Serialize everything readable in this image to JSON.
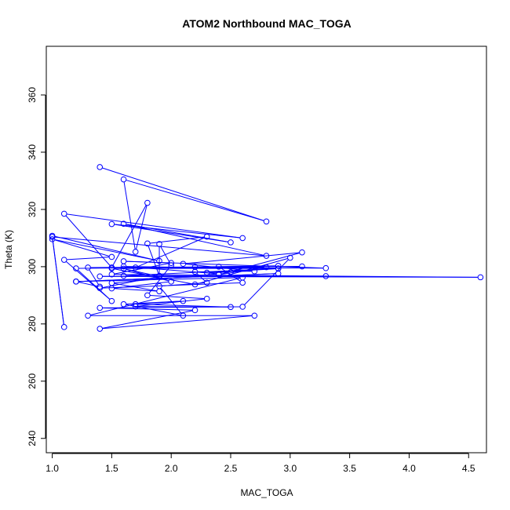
{
  "chart_data": {
    "type": "line",
    "title": "ATOM2 Northbound MAC_TOGA",
    "xlabel": "MAC_TOGA",
    "ylabel": "Theta (K)",
    "xlim": [
      0.95,
      4.65
    ],
    "ylim": [
      235,
      377
    ],
    "xticks": [
      1.0,
      1.5,
      2.0,
      2.5,
      3.0,
      3.5,
      4.0,
      4.5
    ],
    "xtick_labels": [
      "1.0",
      "1.5",
      "2.0",
      "2.5",
      "3.0",
      "3.5",
      "4.0",
      "4.5"
    ],
    "yticks": [
      240,
      260,
      280,
      300,
      320,
      340,
      360
    ],
    "ytick_labels": [
      "240",
      "260",
      "280",
      "300",
      "320",
      "340",
      "360"
    ],
    "grid": false,
    "series": [
      {
        "color": "#0000ff",
        "marker": "open-circle",
        "points": [
          [
            1.4,
            334.8
          ],
          [
            2.8,
            315.8
          ],
          [
            1.6,
            330.5
          ],
          [
            1.7,
            305.2
          ],
          [
            1.8,
            322.3
          ],
          [
            1.5,
            299.7
          ],
          [
            1.1,
            318.5
          ],
          [
            2.6,
            310.0
          ],
          [
            1.5,
            314.9
          ],
          [
            2.5,
            308.5
          ],
          [
            1.6,
            315.0
          ],
          [
            2.8,
            303.8
          ],
          [
            1.0,
            310.4
          ],
          [
            1.1,
            278.9
          ],
          [
            1.0,
            310.8
          ],
          [
            1.9,
            302.0
          ],
          [
            1.0,
            309.6
          ],
          [
            1.5,
            303.4
          ],
          [
            1.1,
            302.4
          ],
          [
            1.5,
            288.0
          ],
          [
            1.2,
            299.4
          ],
          [
            3.1,
            300.1
          ],
          [
            1.3,
            299.7
          ],
          [
            1.4,
            293.0
          ],
          [
            1.2,
            294.8
          ],
          [
            2.9,
            297.6
          ],
          [
            1.2,
            294.8
          ],
          [
            2.6,
            296.2
          ],
          [
            1.3,
            282.9
          ],
          [
            2.7,
            282.9
          ],
          [
            1.4,
            278.3
          ],
          [
            2.2,
            284.8
          ],
          [
            1.4,
            285.6
          ],
          [
            2.6,
            286.0
          ],
          [
            3.0,
            303.1
          ],
          [
            2.2,
            293.8
          ],
          [
            1.5,
            299.4
          ],
          [
            2.9,
            299.4
          ],
          [
            1.6,
            296.8
          ],
          [
            3.3,
            296.7
          ],
          [
            1.4,
            296.6
          ],
          [
            4.6,
            296.3
          ],
          [
            1.5,
            297.3
          ],
          [
            2.0,
            301.3
          ],
          [
            1.6,
            301.9
          ],
          [
            3.3,
            299.5
          ],
          [
            1.7,
            299.7
          ],
          [
            2.3,
            310.5
          ],
          [
            1.8,
            308.1
          ],
          [
            1.9,
            296.8
          ],
          [
            1.9,
            307.9
          ],
          [
            2.0,
            300.5
          ],
          [
            1.8,
            290.0
          ],
          [
            2.3,
            288.8
          ],
          [
            1.7,
            286.1
          ],
          [
            2.5,
            285.9
          ],
          [
            1.7,
            286.9
          ],
          [
            2.1,
            288.0
          ],
          [
            1.6,
            286.9
          ],
          [
            2.1,
            282.9
          ],
          [
            1.9,
            293.2
          ],
          [
            2.3,
            294.4
          ],
          [
            2.2,
            298.2
          ],
          [
            2.7,
            298.4
          ],
          [
            2.1,
            301.0
          ],
          [
            3.1,
            305.0
          ],
          [
            2.4,
            297.2
          ],
          [
            2.8,
            299.8
          ],
          [
            2.2,
            299.9
          ],
          [
            2.9,
            300.3
          ],
          [
            2.4,
            300.0
          ],
          [
            2.6,
            294.4
          ],
          [
            1.4,
            292.5
          ],
          [
            1.9,
            296.6
          ],
          [
            1.6,
            299.3
          ],
          [
            2.0,
            294.8
          ],
          [
            1.5,
            292.4
          ],
          [
            1.9,
            291.4
          ],
          [
            1.5,
            294.3
          ],
          [
            2.4,
            297.5
          ],
          [
            1.6,
            300.1
          ],
          [
            2.9,
            299.3
          ],
          [
            2.3,
            297.9
          ],
          [
            2.5,
            298.1
          ]
        ],
        "path_order": [
          0,
          1,
          2,
          3,
          4,
          5,
          6,
          7,
          8,
          9,
          10,
          11,
          12,
          13,
          14,
          15,
          16,
          17,
          18,
          19,
          20,
          21,
          22,
          23,
          24,
          25,
          26,
          27,
          28,
          29,
          30,
          31,
          32,
          33,
          34,
          35,
          36,
          37,
          38,
          39,
          40,
          41,
          42,
          43,
          44,
          45,
          46,
          47,
          48,
          49,
          50,
          51,
          52,
          53,
          54,
          55,
          56,
          57,
          58,
          59,
          60,
          61,
          62,
          63,
          64,
          65,
          66,
          67,
          68,
          69,
          70,
          71,
          72,
          73,
          74,
          75,
          76,
          77,
          78,
          79,
          80,
          81,
          82,
          83
        ]
      }
    ]
  }
}
